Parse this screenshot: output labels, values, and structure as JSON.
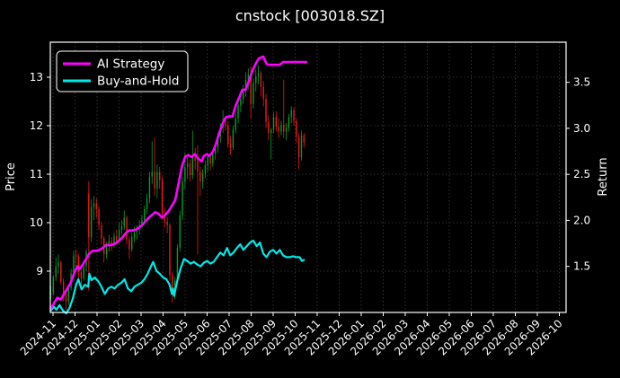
{
  "chart_data": {
    "type": "candlestick+line",
    "title": "cnstock [003018.SZ]",
    "ylabel_left": "Price",
    "ylabel_right": "Return",
    "x_unit": "months since 2024-11-01",
    "x_tick_labels": [
      "2024-11",
      "2024-12",
      "2025-01",
      "2025-02",
      "2025-03",
      "2025-04",
      "2025-05",
      "2025-06",
      "2025-07",
      "2025-08",
      "2025-09",
      "2025-10",
      "2025-11",
      "2025-12",
      "2026-01",
      "2026-02",
      "2026-03",
      "2026-04",
      "2026-05",
      "2026-06",
      "2026-07",
      "2026-08",
      "2026-09",
      "2026-10"
    ],
    "y_left_ticks": [
      9,
      10,
      11,
      12,
      13
    ],
    "y_left_range": [
      8.15,
      13.72
    ],
    "y_right_ticks": [
      1.5,
      2.0,
      2.5,
      3.0,
      3.5
    ],
    "y_right_range": [
      1.0,
      3.94
    ],
    "x_range_months": [
      -0.25,
      23.45
    ],
    "grid": true,
    "colors": {
      "background": "#000000",
      "text": "#ffffff",
      "grid": "#3d3d3d",
      "spine": "#ffffff",
      "candle_up": "#00a028",
      "candle_down": "#f01818",
      "ai_strategy": "#ff00ff",
      "buy_and_hold": "#00e8e8"
    },
    "legend": {
      "position": "upper left",
      "entries": [
        {
          "label": "AI Strategy",
          "color": "#ff00ff"
        },
        {
          "label": "Buy-and-Hold",
          "color": "#00e8e8"
        }
      ]
    },
    "candles_ohlc_by_month": [
      [
        -0.1,
        8.52,
        8.68,
        8.42,
        8.55
      ],
      [
        0.015,
        8.55,
        8.92,
        8.5,
        8.88
      ],
      [
        0.13,
        8.88,
        9.28,
        8.8,
        9.1
      ],
      [
        0.245,
        9.1,
        9.35,
        8.95,
        9.18
      ],
      [
        0.36,
        9.18,
        9.22,
        8.72,
        8.78
      ],
      [
        0.475,
        8.78,
        8.85,
        8.38,
        8.52
      ],
      [
        0.59,
        8.52,
        8.62,
        8.2,
        8.38
      ],
      [
        0.705,
        8.38,
        8.72,
        8.3,
        8.65
      ],
      [
        0.82,
        8.65,
        9.05,
        8.6,
        8.95
      ],
      [
        0.935,
        8.95,
        9.42,
        8.88,
        9.32
      ],
      [
        1.05,
        9.32,
        9.45,
        9.1,
        9.3
      ],
      [
        1.165,
        9.3,
        9.35,
        8.85,
        8.98
      ],
      [
        1.28,
        8.98,
        9.12,
        8.7,
        8.85
      ],
      [
        1.395,
        8.85,
        9.18,
        8.8,
        9.1
      ],
      [
        1.51,
        9.1,
        9.45,
        9.0,
        9.4
      ],
      [
        1.625,
        10.6,
        10.85,
        8.6,
        9.7
      ],
      [
        1.74,
        9.7,
        10.48,
        9.6,
        10.32
      ],
      [
        1.855,
        10.32,
        10.55,
        10.05,
        10.4
      ],
      [
        1.97,
        10.4,
        10.5,
        10.1,
        10.28
      ],
      [
        2.085,
        10.28,
        10.35,
        9.85,
        9.95
      ],
      [
        2.2,
        9.95,
        10.02,
        9.55,
        9.68
      ],
      [
        2.315,
        9.68,
        9.72,
        9.18,
        9.35
      ],
      [
        2.43,
        9.35,
        9.6,
        9.25,
        9.52
      ],
      [
        2.545,
        9.52,
        9.75,
        9.4,
        9.62
      ],
      [
        2.66,
        9.62,
        9.7,
        9.42,
        9.55
      ],
      [
        2.775,
        9.55,
        9.8,
        9.48,
        9.72
      ],
      [
        2.89,
        9.72,
        9.85,
        9.55,
        9.62
      ],
      [
        3.005,
        9.62,
        10.0,
        9.58,
        9.85
      ],
      [
        3.12,
        9.85,
        10.05,
        9.75,
        9.92
      ],
      [
        3.235,
        9.92,
        10.25,
        9.85,
        10.1
      ],
      [
        3.35,
        10.1,
        10.15,
        9.55,
        9.65
      ],
      [
        3.465,
        9.65,
        9.72,
        9.25,
        9.45
      ],
      [
        3.58,
        9.45,
        9.8,
        9.4,
        9.7
      ],
      [
        3.695,
        9.7,
        9.92,
        9.6,
        9.8
      ],
      [
        3.81,
        9.8,
        9.95,
        9.65,
        9.88
      ],
      [
        3.925,
        9.88,
        10.05,
        9.75,
        9.95
      ],
      [
        4.04,
        9.95,
        10.15,
        9.88,
        10.05
      ],
      [
        4.155,
        10.05,
        10.35,
        9.95,
        10.28
      ],
      [
        4.27,
        10.28,
        10.6,
        10.18,
        10.5
      ],
      [
        4.385,
        10.5,
        11.05,
        10.4,
        10.95
      ],
      [
        4.5,
        10.95,
        11.68,
        10.8,
        11.05
      ],
      [
        4.615,
        11.05,
        11.75,
        10.55,
        10.7
      ],
      [
        4.73,
        10.7,
        11.2,
        10.5,
        11.05
      ],
      [
        4.845,
        11.05,
        11.15,
        10.7,
        10.88
      ],
      [
        4.96,
        10.88,
        10.95,
        10.1,
        10.18
      ],
      [
        5.075,
        10.18,
        10.3,
        9.9,
        10.02
      ],
      [
        5.19,
        10.02,
        10.12,
        9.78,
        9.95
      ],
      [
        5.305,
        9.95,
        9.98,
        8.8,
        8.92
      ],
      [
        5.42,
        8.92,
        8.98,
        8.35,
        8.5
      ],
      [
        5.535,
        8.5,
        8.88,
        8.42,
        8.8
      ],
      [
        5.65,
        8.8,
        9.55,
        8.72,
        9.48
      ],
      [
        5.765,
        9.48,
        10.25,
        9.4,
        10.15
      ],
      [
        5.88,
        10.15,
        10.95,
        10.05,
        10.85
      ],
      [
        5.995,
        10.85,
        11.45,
        10.7,
        11.15
      ],
      [
        6.11,
        11.15,
        11.35,
        10.9,
        11.22
      ],
      [
        6.225,
        11.22,
        11.3,
        10.85,
        10.98
      ],
      [
        6.34,
        10.98,
        11.9,
        10.9,
        11.35
      ],
      [
        6.455,
        11.35,
        11.55,
        11.1,
        11.28
      ],
      [
        6.57,
        11.28,
        11.6,
        9.35,
        11.05
      ],
      [
        6.685,
        11.05,
        11.15,
        10.55,
        10.85
      ],
      [
        6.8,
        10.85,
        11.1,
        10.7,
        11.02
      ],
      [
        6.915,
        11.02,
        11.28,
        10.92,
        11.18
      ],
      [
        7.03,
        11.18,
        11.42,
        11.05,
        11.35
      ],
      [
        7.145,
        11.35,
        11.4,
        11.08,
        11.22
      ],
      [
        7.26,
        11.22,
        11.5,
        11.15,
        11.42
      ],
      [
        7.375,
        11.42,
        11.65,
        11.3,
        11.55
      ],
      [
        7.49,
        11.55,
        11.85,
        11.45,
        11.78
      ],
      [
        7.605,
        11.78,
        12.05,
        11.65,
        11.95
      ],
      [
        7.72,
        11.95,
        12.32,
        11.85,
        12.05
      ],
      [
        7.835,
        12.05,
        12.2,
        11.9,
        12.0
      ],
      [
        7.95,
        12.0,
        12.08,
        11.55,
        11.62
      ],
      [
        8.065,
        11.62,
        11.78,
        11.4,
        11.55
      ],
      [
        8.18,
        11.55,
        12.0,
        11.5,
        11.92
      ],
      [
        8.295,
        11.92,
        12.25,
        11.85,
        12.15
      ],
      [
        8.41,
        12.15,
        12.5,
        12.05,
        12.42
      ],
      [
        8.525,
        12.42,
        12.65,
        12.28,
        12.55
      ],
      [
        8.64,
        12.55,
        12.85,
        12.45,
        12.72
      ],
      [
        8.755,
        12.72,
        13.1,
        12.6,
        12.95
      ],
      [
        8.87,
        12.95,
        13.18,
        12.75,
        13.05
      ],
      [
        8.985,
        13.05,
        13.22,
        12.15,
        12.45
      ],
      [
        9.1,
        12.45,
        12.98,
        12.35,
        12.88
      ],
      [
        9.215,
        12.88,
        13.15,
        12.7,
        13.02
      ],
      [
        9.33,
        13.02,
        13.25,
        12.85,
        13.08
      ],
      [
        9.445,
        13.08,
        13.12,
        12.6,
        12.8
      ],
      [
        9.56,
        12.8,
        12.92,
        12.4,
        12.55
      ],
      [
        9.675,
        12.55,
        12.65,
        11.95,
        12.08
      ],
      [
        9.79,
        12.08,
        12.22,
        11.7,
        11.85
      ],
      [
        9.905,
        11.85,
        11.95,
        11.3,
        11.92
      ],
      [
        10.02,
        11.92,
        12.28,
        11.85,
        12.18
      ],
      [
        10.135,
        12.18,
        12.3,
        11.88,
        11.98
      ],
      [
        10.25,
        11.98,
        12.15,
        11.75,
        11.88
      ],
      [
        10.365,
        11.88,
        12.1,
        11.8,
        12.02
      ],
      [
        10.48,
        12.02,
        12.95,
        11.75,
        11.88
      ],
      [
        10.595,
        11.88,
        12.05,
        11.7,
        11.95
      ],
      [
        10.71,
        11.95,
        12.25,
        11.88,
        12.18
      ],
      [
        10.825,
        12.18,
        12.4,
        12.05,
        12.32
      ],
      [
        10.94,
        12.32,
        12.38,
        12.0,
        12.1
      ],
      [
        11.055,
        12.1,
        12.15,
        11.65,
        11.78
      ],
      [
        11.17,
        11.78,
        11.85,
        11.1,
        11.35
      ],
      [
        11.285,
        11.35,
        11.9,
        11.28,
        11.8
      ],
      [
        11.4,
        11.8,
        11.85,
        11.55,
        11.65
      ]
    ],
    "series": [
      {
        "name": "AI Strategy",
        "axis": "right",
        "color": "#ff00ff",
        "points": [
          [
            -0.1,
            1.04
          ],
          [
            0.05,
            1.1
          ],
          [
            0.2,
            1.16
          ],
          [
            0.35,
            1.14
          ],
          [
            0.5,
            1.2
          ],
          [
            0.65,
            1.26
          ],
          [
            0.8,
            1.32
          ],
          [
            0.95,
            1.42
          ],
          [
            1.1,
            1.5
          ],
          [
            1.2,
            1.47
          ],
          [
            1.35,
            1.52
          ],
          [
            1.5,
            1.58
          ],
          [
            1.65,
            1.64
          ],
          [
            1.8,
            1.67
          ],
          [
            2.0,
            1.67
          ],
          [
            2.2,
            1.69
          ],
          [
            2.4,
            1.73
          ],
          [
            2.6,
            1.73
          ],
          [
            2.75,
            1.74
          ],
          [
            2.9,
            1.76
          ],
          [
            3.1,
            1.8
          ],
          [
            3.3,
            1.86
          ],
          [
            3.45,
            1.89
          ],
          [
            3.6,
            1.89
          ],
          [
            3.75,
            1.9
          ],
          [
            3.9,
            1.92
          ],
          [
            4.05,
            1.95
          ],
          [
            4.2,
            1.99
          ],
          [
            4.35,
            2.03
          ],
          [
            4.5,
            2.06
          ],
          [
            4.65,
            2.09
          ],
          [
            4.8,
            2.07
          ],
          [
            4.95,
            2.03
          ],
          [
            5.1,
            2.06
          ],
          [
            5.25,
            2.1
          ],
          [
            5.4,
            2.16
          ],
          [
            5.55,
            2.22
          ],
          [
            5.7,
            2.4
          ],
          [
            5.85,
            2.58
          ],
          [
            6.0,
            2.69
          ],
          [
            6.15,
            2.71
          ],
          [
            6.3,
            2.69
          ],
          [
            6.45,
            2.72
          ],
          [
            6.6,
            2.67
          ],
          [
            6.75,
            2.64
          ],
          [
            6.85,
            2.7
          ],
          [
            7.0,
            2.72
          ],
          [
            7.1,
            2.7
          ],
          [
            7.25,
            2.74
          ],
          [
            7.4,
            2.83
          ],
          [
            7.55,
            2.95
          ],
          [
            7.7,
            3.05
          ],
          [
            7.85,
            3.12
          ],
          [
            8.0,
            3.13
          ],
          [
            8.15,
            3.13
          ],
          [
            8.3,
            3.25
          ],
          [
            8.45,
            3.33
          ],
          [
            8.6,
            3.42
          ],
          [
            8.75,
            3.42
          ],
          [
            8.9,
            3.52
          ],
          [
            9.05,
            3.62
          ],
          [
            9.2,
            3.7
          ],
          [
            9.35,
            3.76
          ],
          [
            9.45,
            3.77
          ],
          [
            9.55,
            3.78
          ],
          [
            9.7,
            3.7
          ],
          [
            9.85,
            3.69
          ],
          [
            10.0,
            3.69
          ],
          [
            10.3,
            3.69
          ],
          [
            10.45,
            3.72
          ],
          [
            11.5,
            3.72
          ]
        ]
      },
      {
        "name": "Buy-and-Hold",
        "axis": "right",
        "color": "#00e8e8",
        "points": [
          [
            -0.1,
            1.02
          ],
          [
            0.05,
            1.06
          ],
          [
            0.15,
            1.03
          ],
          [
            0.3,
            1.08
          ],
          [
            0.45,
            1.02
          ],
          [
            0.6,
            0.99
          ],
          [
            0.75,
            1.05
          ],
          [
            0.9,
            1.15
          ],
          [
            1.05,
            1.3
          ],
          [
            1.15,
            1.36
          ],
          [
            1.3,
            1.25
          ],
          [
            1.45,
            1.3
          ],
          [
            1.6,
            1.28
          ],
          [
            1.65,
            1.42
          ],
          [
            1.75,
            1.35
          ],
          [
            1.9,
            1.38
          ],
          [
            2.05,
            1.34
          ],
          [
            2.2,
            1.28
          ],
          [
            2.35,
            1.2
          ],
          [
            2.5,
            1.26
          ],
          [
            2.65,
            1.28
          ],
          [
            2.8,
            1.26
          ],
          [
            2.95,
            1.3
          ],
          [
            3.1,
            1.32
          ],
          [
            3.25,
            1.36
          ],
          [
            3.4,
            1.26
          ],
          [
            3.55,
            1.23
          ],
          [
            3.7,
            1.28
          ],
          [
            3.85,
            1.3
          ],
          [
            4.0,
            1.32
          ],
          [
            4.15,
            1.36
          ],
          [
            4.3,
            1.42
          ],
          [
            4.45,
            1.5
          ],
          [
            4.55,
            1.55
          ],
          [
            4.7,
            1.45
          ],
          [
            4.85,
            1.42
          ],
          [
            5.0,
            1.38
          ],
          [
            5.15,
            1.36
          ],
          [
            5.3,
            1.3
          ],
          [
            5.4,
            1.2
          ],
          [
            5.45,
            1.26
          ],
          [
            5.5,
            1.18
          ],
          [
            5.65,
            1.35
          ],
          [
            5.8,
            1.48
          ],
          [
            5.95,
            1.58
          ],
          [
            6.1,
            1.56
          ],
          [
            6.25,
            1.53
          ],
          [
            6.4,
            1.55
          ],
          [
            6.55,
            1.52
          ],
          [
            6.7,
            1.5
          ],
          [
            6.85,
            1.54
          ],
          [
            7.0,
            1.56
          ],
          [
            7.15,
            1.53
          ],
          [
            7.3,
            1.55
          ],
          [
            7.45,
            1.6
          ],
          [
            7.6,
            1.65
          ],
          [
            7.75,
            1.62
          ],
          [
            7.9,
            1.7
          ],
          [
            8.05,
            1.62
          ],
          [
            8.2,
            1.65
          ],
          [
            8.35,
            1.7
          ],
          [
            8.5,
            1.74
          ],
          [
            8.65,
            1.68
          ],
          [
            8.8,
            1.72
          ],
          [
            8.95,
            1.76
          ],
          [
            9.1,
            1.78
          ],
          [
            9.25,
            1.72
          ],
          [
            9.4,
            1.76
          ],
          [
            9.55,
            1.64
          ],
          [
            9.7,
            1.6
          ],
          [
            9.85,
            1.66
          ],
          [
            10.0,
            1.68
          ],
          [
            10.15,
            1.64
          ],
          [
            10.3,
            1.68
          ],
          [
            10.45,
            1.62
          ],
          [
            10.6,
            1.6
          ],
          [
            10.75,
            1.6
          ],
          [
            10.9,
            1.61
          ],
          [
            11.05,
            1.6
          ],
          [
            11.2,
            1.6
          ],
          [
            11.3,
            1.56
          ],
          [
            11.4,
            1.57
          ]
        ]
      }
    ]
  }
}
